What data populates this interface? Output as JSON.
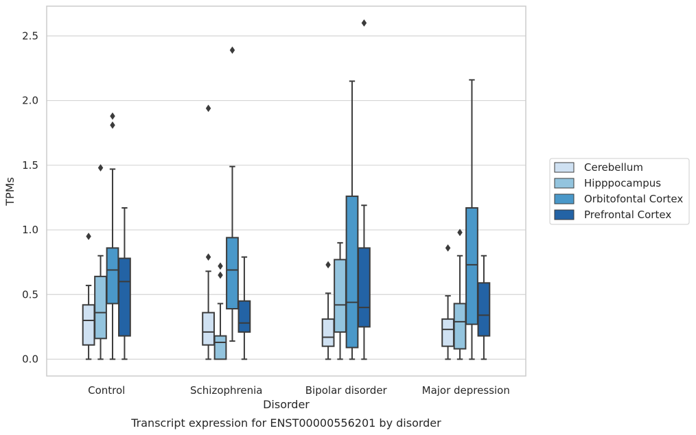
{
  "chart_data": {
    "type": "box",
    "xlabel": "Disorder",
    "ylabel": "TPMs",
    "caption": "Transcript expression for ENST00000556201 by disorder",
    "ylim": [
      -0.13,
      2.73
    ],
    "yticks": [
      "0.0",
      "0.5",
      "1.0",
      "1.5",
      "2.0",
      "2.5"
    ],
    "grid": "horizontal",
    "legend_position": "right",
    "categories": [
      "Control",
      "Schizophrenia",
      "Bipolar disorder",
      "Major depression"
    ],
    "series": [
      {
        "name": "Cerebellum",
        "color": "#cfe1f2",
        "boxes": [
          {
            "whislo": 0.0,
            "q1": 0.11,
            "med": 0.3,
            "q3": 0.42,
            "whishi": 0.57,
            "fliers": [
              0.95
            ]
          },
          {
            "whislo": 0.0,
            "q1": 0.11,
            "med": 0.21,
            "q3": 0.36,
            "whishi": 0.68,
            "fliers": [
              0.79,
              1.94
            ]
          },
          {
            "whislo": 0.0,
            "q1": 0.1,
            "med": 0.17,
            "q3": 0.31,
            "whishi": 0.51,
            "fliers": [
              0.73
            ]
          },
          {
            "whislo": 0.0,
            "q1": 0.1,
            "med": 0.23,
            "q3": 0.31,
            "whishi": 0.49,
            "fliers": [
              0.86
            ]
          }
        ]
      },
      {
        "name": "Hipppocampus",
        "color": "#93c4de",
        "boxes": [
          {
            "whislo": 0.0,
            "q1": 0.16,
            "med": 0.36,
            "q3": 0.64,
            "whishi": 0.8,
            "fliers": [
              1.48
            ]
          },
          {
            "whislo": 0.0,
            "q1": 0.0,
            "med": 0.13,
            "q3": 0.18,
            "whishi": 0.43,
            "fliers": [
              0.65,
              0.72
            ]
          },
          {
            "whislo": 0.0,
            "q1": 0.21,
            "med": 0.42,
            "q3": 0.77,
            "whishi": 0.9,
            "fliers": []
          },
          {
            "whislo": 0.0,
            "q1": 0.08,
            "med": 0.29,
            "q3": 0.43,
            "whishi": 0.8,
            "fliers": [
              0.98
            ]
          }
        ]
      },
      {
        "name": "Orbitofontal Cortex",
        "color": "#4a98c9",
        "boxes": [
          {
            "whislo": 0.0,
            "q1": 0.43,
            "med": 0.69,
            "q3": 0.86,
            "whishi": 1.47,
            "fliers": [
              1.81,
              1.88
            ]
          },
          {
            "whislo": 0.14,
            "q1": 0.39,
            "med": 0.69,
            "q3": 0.94,
            "whishi": 1.49,
            "fliers": [
              2.39
            ]
          },
          {
            "whislo": 0.0,
            "q1": 0.09,
            "med": 0.44,
            "q3": 1.26,
            "whishi": 2.15,
            "fliers": []
          },
          {
            "whislo": 0.0,
            "q1": 0.27,
            "med": 0.73,
            "q3": 1.17,
            "whishi": 2.16,
            "fliers": []
          }
        ]
      },
      {
        "name": "Prefrontal Cortex",
        "color": "#2363a5",
        "boxes": [
          {
            "whislo": 0.0,
            "q1": 0.18,
            "med": 0.6,
            "q3": 0.78,
            "whishi": 1.17,
            "fliers": []
          },
          {
            "whislo": 0.0,
            "q1": 0.21,
            "med": 0.28,
            "q3": 0.45,
            "whishi": 0.79,
            "fliers": []
          },
          {
            "whislo": 0.0,
            "q1": 0.25,
            "med": 0.4,
            "q3": 0.86,
            "whishi": 1.19,
            "fliers": [
              2.6
            ]
          },
          {
            "whislo": 0.0,
            "q1": 0.18,
            "med": 0.34,
            "q3": 0.59,
            "whishi": 0.8,
            "fliers": []
          }
        ]
      }
    ]
  }
}
